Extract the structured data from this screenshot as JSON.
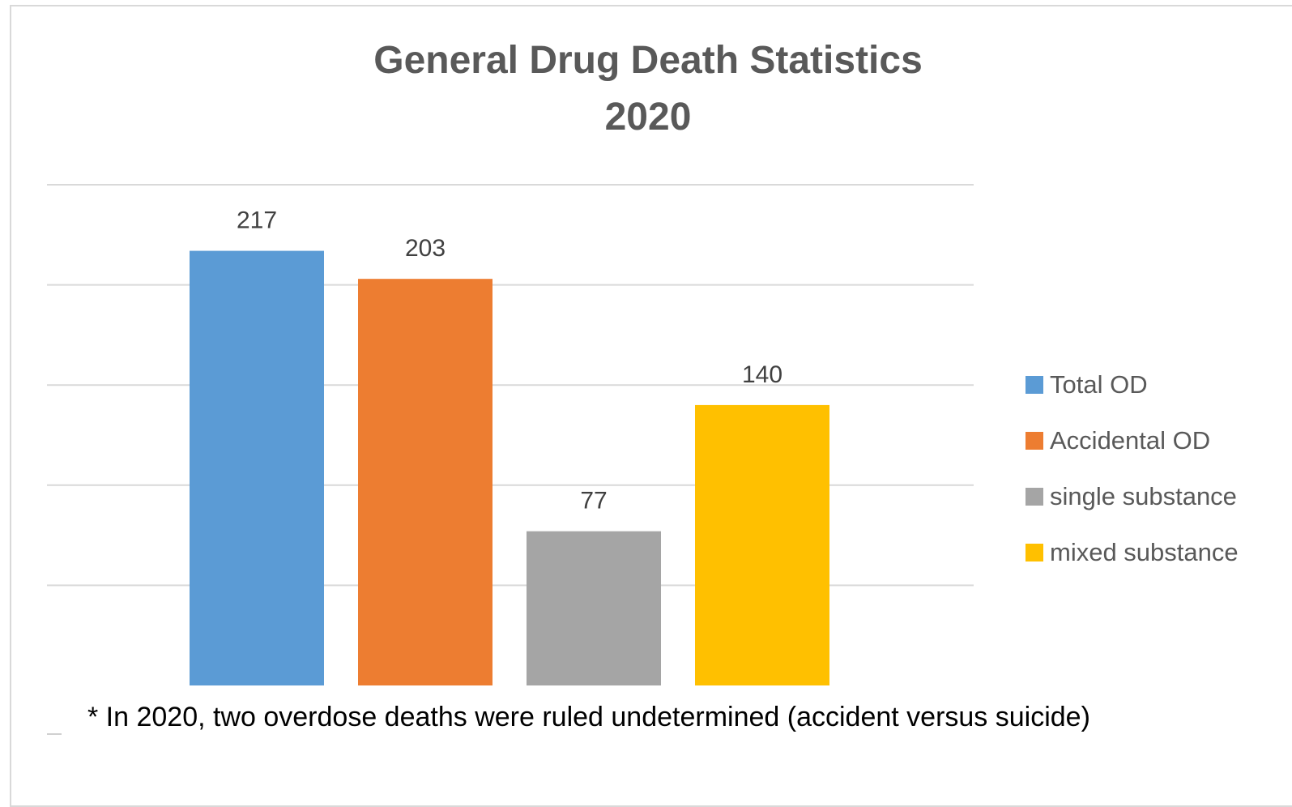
{
  "chart_data": {
    "type": "bar",
    "title_line1": "General Drug Death Statistics",
    "title_line2": "2020",
    "categories": [
      "Total OD",
      "Accidental OD",
      "single substance",
      "mixed substance"
    ],
    "values": [
      217,
      203,
      77,
      140
    ],
    "colors": [
      "#5b9bd5",
      "#ed7d31",
      "#a5a5a5",
      "#ffc000"
    ],
    "ylim": [
      0,
      250
    ],
    "grid": true,
    "gridline_values": [
      50,
      100,
      150,
      200,
      250
    ],
    "legend_position": "right",
    "xlabel": "",
    "ylabel": ""
  },
  "legend": {
    "items": [
      {
        "label": "Total OD",
        "color": "#5b9bd5"
      },
      {
        "label": "Accidental OD",
        "color": "#ed7d31"
      },
      {
        "label": "single substance",
        "color": "#a5a5a5"
      },
      {
        "label": "mixed substance",
        "color": "#ffc000"
      }
    ]
  },
  "footnote": "* In 2020, two overdose deaths were ruled undetermined (accident versus suicide)"
}
